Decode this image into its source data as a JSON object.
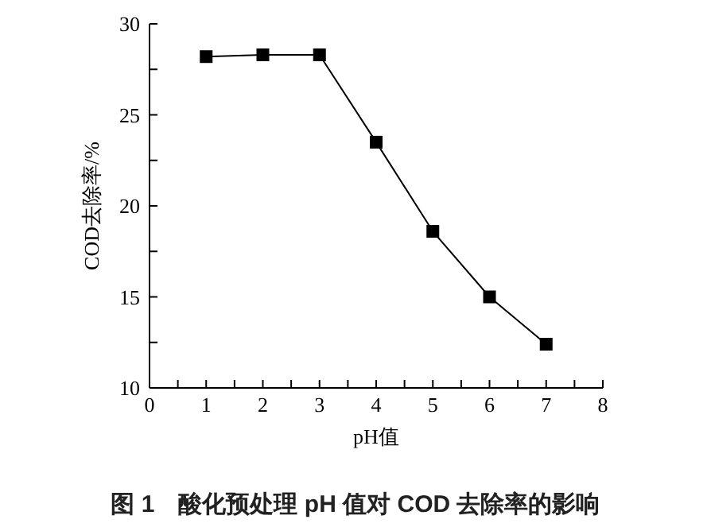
{
  "chart_data": {
    "type": "line",
    "xlabel": "pH值",
    "ylabel": "COD去除率/%",
    "annotations": [
      "图 1　酸化预处理 pH 值对 COD 去除率的影响"
    ],
    "x": [
      1,
      2,
      3,
      4,
      5,
      6,
      7
    ],
    "series": [
      {
        "color": "#000000",
        "values": [
          28.2,
          28.3,
          28.3,
          23.5,
          18.6,
          15.0,
          12.4
        ]
      }
    ],
    "marker": "square",
    "line_style": "solid",
    "grid": false,
    "xlim": [
      0,
      8
    ],
    "xticks": [
      0,
      {
        "value": 0.5,
        "label": null
      },
      1,
      {
        "value": 1.5,
        "label": null
      },
      2,
      {
        "value": 2.5,
        "label": null
      },
      3,
      {
        "value": 3.5,
        "label": null
      },
      4,
      {
        "value": 4.5,
        "label": null
      },
      5,
      {
        "value": 5.5,
        "label": null
      },
      6,
      {
        "value": 6.5,
        "label": null
      },
      7,
      {
        "value": 7.5,
        "label": null
      },
      8
    ],
    "ylim": [
      10,
      30
    ],
    "yticks": [
      10,
      {
        "value": 12.5,
        "label": null
      },
      15,
      {
        "value": 17.5,
        "label": null
      },
      20,
      {
        "value": 22.5,
        "label": null
      },
      25,
      {
        "value": 27.5,
        "label": null
      },
      30
    ]
  }
}
